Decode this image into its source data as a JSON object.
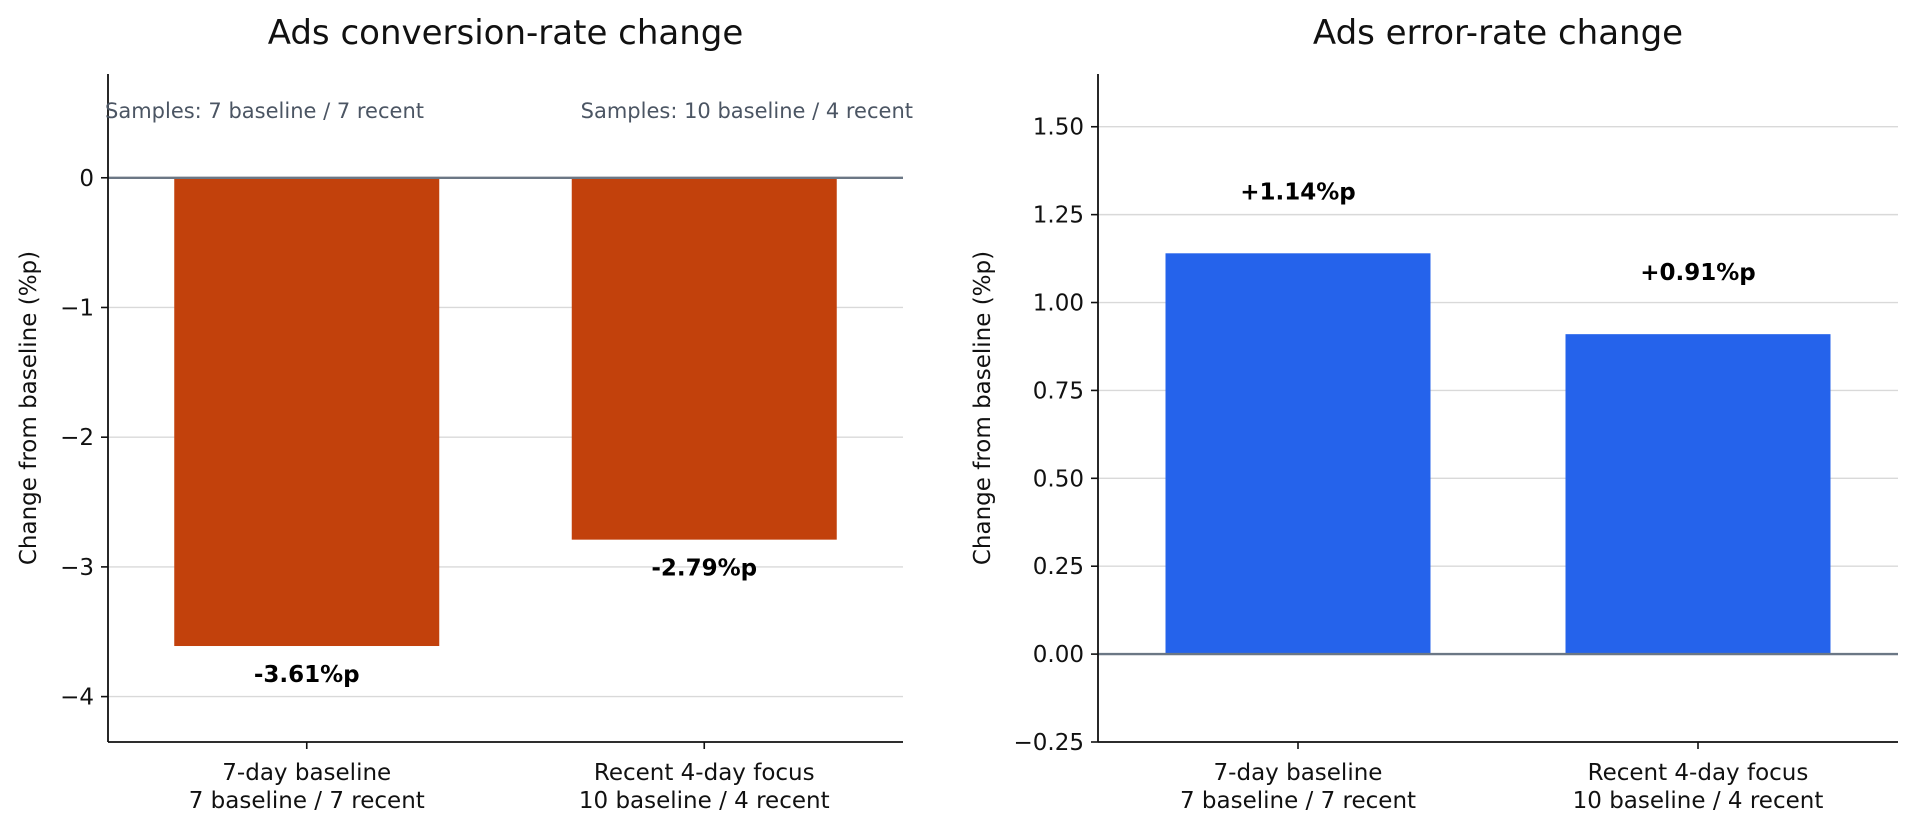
{
  "chart_data": [
    {
      "type": "bar",
      "title": "Ads conversion-rate change",
      "ylabel": "Change from baseline (%p)",
      "categories": [
        [
          "7-day baseline",
          "7 baseline / 7 recent"
        ],
        [
          "Recent 4-day focus",
          "10 baseline / 4 recent"
        ]
      ],
      "values": [
        -3.61,
        -2.79
      ],
      "data_labels": [
        "-3.61%p",
        "-2.79%p"
      ],
      "annotations": [
        "Samples: 7 baseline / 7 recent",
        "Samples: 10 baseline / 4 recent"
      ],
      "ylim": [
        -4.35,
        0.8
      ],
      "yticks": [
        -4,
        -3,
        -2,
        -1,
        0
      ],
      "ytick_labels": [
        "−4",
        "−3",
        "−2",
        "−1",
        "0"
      ],
      "grid": true,
      "bar_color": "#c2410c",
      "zero_line_color": "#6b7785"
    },
    {
      "type": "bar",
      "title": "Ads error-rate change",
      "ylabel": "Change from baseline (%p)",
      "categories": [
        [
          "7-day baseline",
          "7 baseline / 7 recent"
        ],
        [
          "Recent 4-day focus",
          "10 baseline / 4 recent"
        ]
      ],
      "values": [
        1.14,
        0.91
      ],
      "data_labels": [
        "+1.14%p",
        "+0.91%p"
      ],
      "annotations": [],
      "ylim": [
        -0.25,
        1.65
      ],
      "yticks": [
        -0.25,
        0.0,
        0.25,
        0.5,
        0.75,
        1.0,
        1.25,
        1.5
      ],
      "ytick_labels": [
        "−0.25",
        "0.00",
        "0.25",
        "0.50",
        "0.75",
        "1.00",
        "1.25",
        "1.50"
      ],
      "grid": true,
      "bar_color": "#2563eb",
      "zero_line_color": "#6b7785"
    }
  ]
}
